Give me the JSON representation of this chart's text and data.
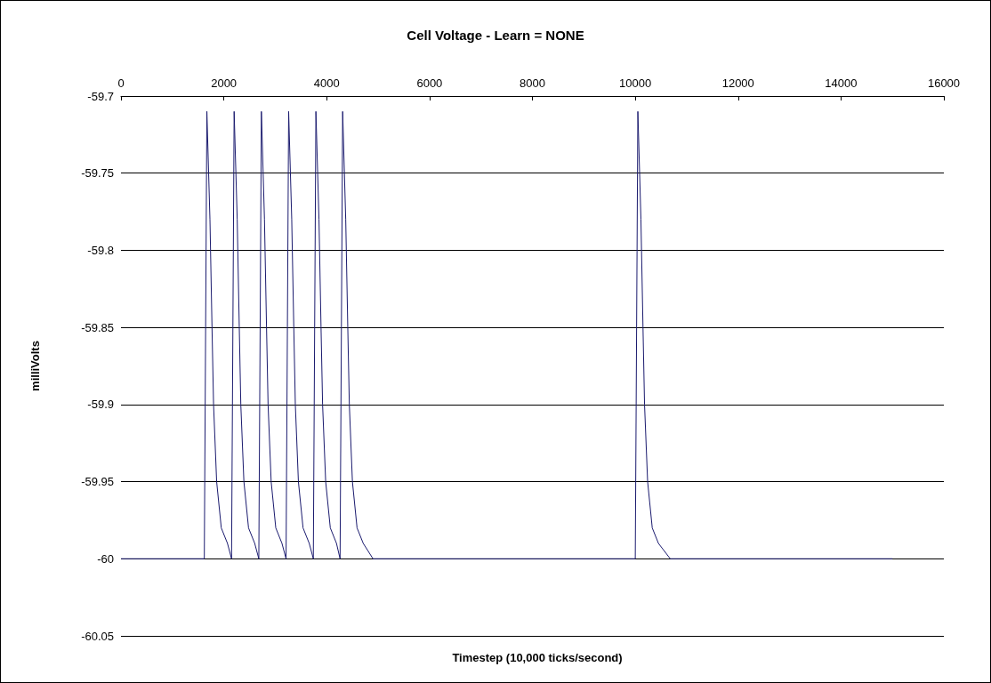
{
  "chart_data": {
    "type": "line",
    "title": "Cell Voltage - Learn = NONE",
    "xlabel": "Timestep (10,000 ticks/second)",
    "ylabel": "milliVolts",
    "x": [
      0,
      1620,
      1670,
      1730,
      1770,
      1800,
      1860,
      1950,
      2070,
      2150,
      2200,
      2260,
      2300,
      2330,
      2390,
      2480,
      2600,
      2680,
      2730,
      2790,
      2830,
      2860,
      2920,
      3010,
      3130,
      3210,
      3260,
      3320,
      3360,
      3390,
      3450,
      3540,
      3660,
      3740,
      3790,
      3850,
      3890,
      3920,
      3980,
      4070,
      4190,
      4260,
      4310,
      4370,
      4410,
      4440,
      4500,
      4590,
      4710,
      4900,
      10000,
      10050,
      10110,
      10150,
      10180,
      10240,
      10330,
      10450,
      10680,
      15000
    ],
    "series": [
      {
        "color": "#1a1a6e",
        "values": [
          -60,
          -60,
          -59.71,
          -59.78,
          -59.85,
          -59.9,
          -59.95,
          -59.98,
          -59.99,
          -60,
          -59.71,
          -59.78,
          -59.85,
          -59.9,
          -59.95,
          -59.98,
          -59.99,
          -60,
          -59.71,
          -59.78,
          -59.85,
          -59.9,
          -59.95,
          -59.98,
          -59.99,
          -60,
          -59.71,
          -59.78,
          -59.85,
          -59.9,
          -59.95,
          -59.98,
          -59.99,
          -60,
          -59.71,
          -59.78,
          -59.85,
          -59.9,
          -59.95,
          -59.98,
          -59.99,
          -60,
          -59.71,
          -59.78,
          -59.85,
          -59.9,
          -59.95,
          -59.98,
          -59.99,
          -60,
          -60,
          -59.71,
          -59.78,
          -59.85,
          -59.9,
          -59.95,
          -59.98,
          -59.99,
          -60,
          -60
        ]
      }
    ],
    "xlim": [
      0,
      16000
    ],
    "xticks": [
      0,
      2000,
      4000,
      6000,
      8000,
      10000,
      12000,
      14000,
      16000
    ],
    "ylim": [
      -60.05,
      -59.7
    ],
    "yticks": [
      -60.05,
      -60,
      -59.95,
      -59.9,
      -59.85,
      -59.8,
      -59.75,
      -59.7
    ],
    "grid": "y",
    "marker": "none",
    "line_style": "solid"
  }
}
